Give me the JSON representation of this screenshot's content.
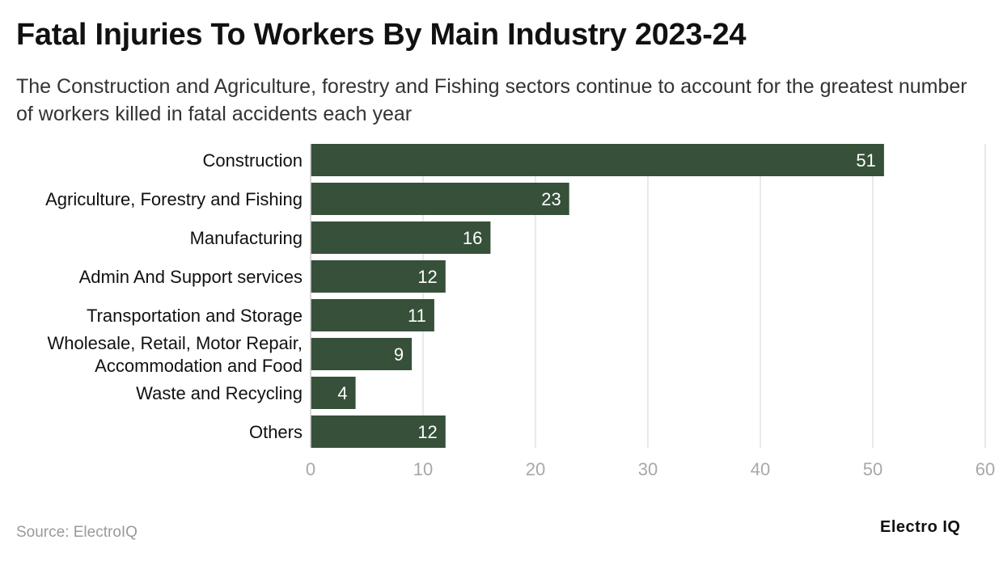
{
  "title": "Fatal Injuries To Workers By Main Industry 2023-24",
  "subtitle": "The Construction and Agriculture, forestry and Fishing sectors continue to account for the greatest number of workers killed in fatal accidents each year",
  "source": "Source: ElectroIQ",
  "brand": "Electro IQ",
  "colors": {
    "bar": "#36503a",
    "grid": "#e2e2e2",
    "tick": "#a8a8a8",
    "label": "#111111",
    "value": "#ffffff"
  },
  "chart_data": {
    "type": "bar",
    "orientation": "horizontal",
    "categories": [
      [
        "Construction"
      ],
      [
        "Agriculture, Forestry and Fishing"
      ],
      [
        "Manufacturing"
      ],
      [
        "Admin And Support services"
      ],
      [
        "Transportation and Storage"
      ],
      [
        "Wholesale, Retail, Motor Repair,",
        "Accommodation and Food"
      ],
      [
        "Waste and Recycling"
      ],
      [
        "Others"
      ]
    ],
    "values": [
      51,
      23,
      16,
      12,
      11,
      9,
      4,
      12
    ],
    "value_labels": [
      "51",
      "23",
      "16",
      "12",
      "11",
      "9",
      "4",
      "12"
    ],
    "xlim": [
      0,
      60
    ],
    "xticks": [
      "0",
      "10",
      "20",
      "30",
      "40",
      "50",
      "60"
    ],
    "grid": true
  }
}
